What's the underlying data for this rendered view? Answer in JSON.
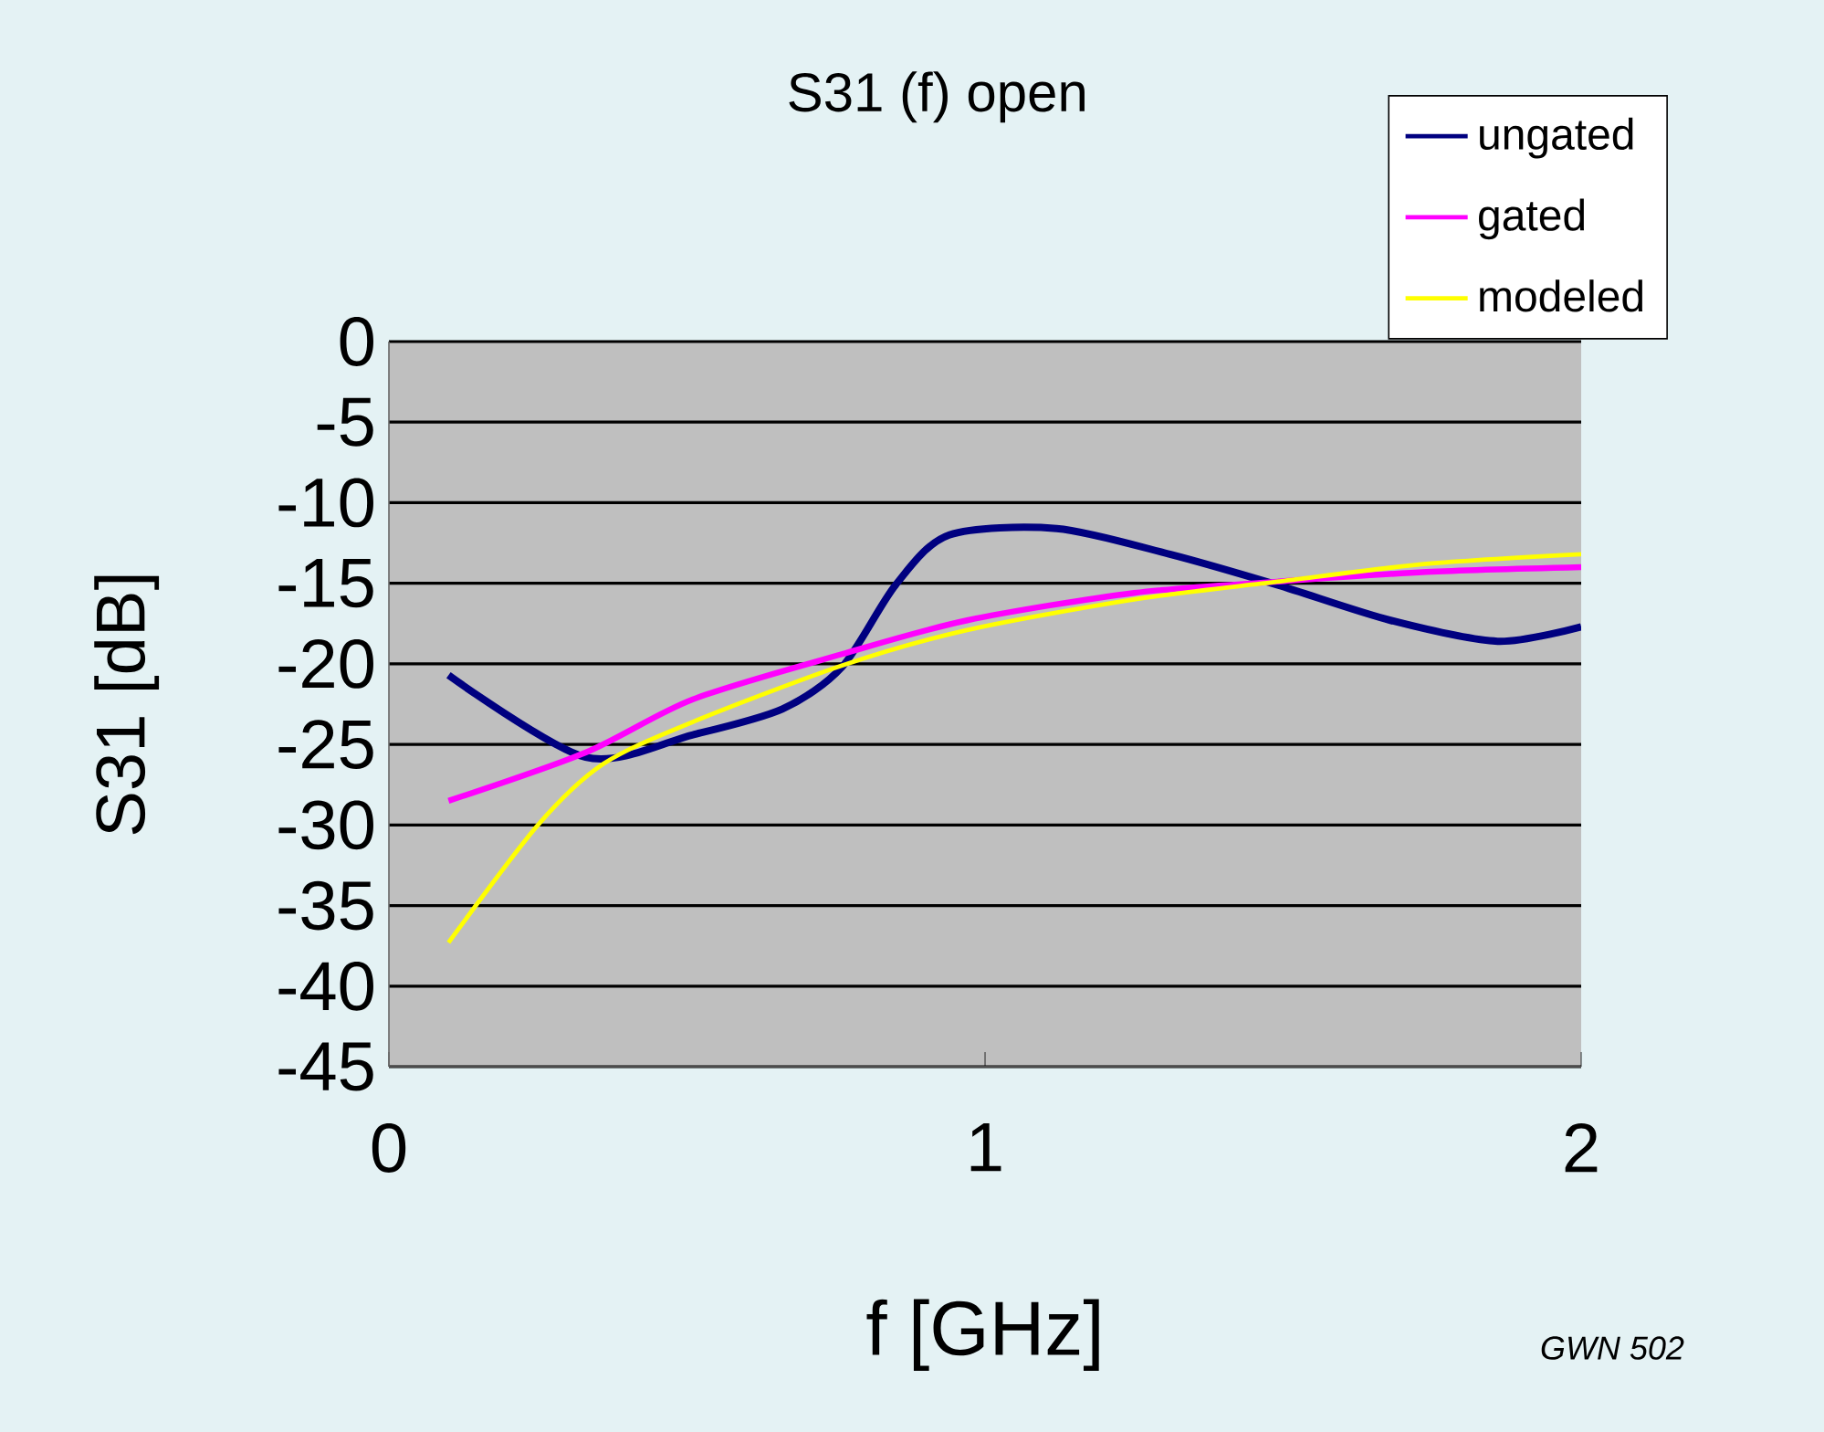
{
  "chart_data": {
    "type": "line",
    "title": "S31 (f) open",
    "xlabel": "f [GHz]",
    "ylabel": "S31 [dB]",
    "annotations": [
      "GWN 502"
    ],
    "xlim": [
      0,
      2
    ],
    "xticks": [
      0,
      1,
      2
    ],
    "ylim": [
      -45,
      0
    ],
    "yticks": [
      -45,
      -40,
      -35,
      -30,
      -25,
      -20,
      -15,
      -10,
      -5,
      0
    ],
    "grid": "y",
    "legend": "top right",
    "marker": "none",
    "line_style": "solid",
    "series": [
      {
        "name": "ungated",
        "color": "#000080",
        "x": [
          0.1,
          0.33,
          0.51,
          0.66,
          0.76,
          0.85,
          0.94,
          1.12,
          1.31,
          1.49,
          1.68,
          1.86,
          2.0
        ],
        "values": [
          -20.7,
          -25.8,
          -24.4,
          -22.8,
          -20.2,
          -15.1,
          -12.0,
          -11.6,
          -13.2,
          -15.1,
          -17.3,
          -18.6,
          -17.7
        ]
      },
      {
        "name": "gated",
        "color": "#ff00ff",
        "x": [
          0.1,
          0.33,
          0.51,
          0.76,
          0.97,
          1.25,
          1.49,
          1.74,
          2.0
        ],
        "values": [
          -28.5,
          -25.5,
          -22.2,
          -19.4,
          -17.3,
          -15.6,
          -14.9,
          -14.3,
          -14.0
        ]
      },
      {
        "name": "modeled",
        "color": "#ffff00",
        "x": [
          0.1,
          0.25,
          0.36,
          0.51,
          0.76,
          0.97,
          1.25,
          1.49,
          1.74,
          2.0
        ],
        "values": [
          -37.3,
          -30.0,
          -26.2,
          -23.6,
          -20.1,
          -17.9,
          -16.0,
          -14.9,
          -13.8,
          -13.2
        ]
      }
    ]
  }
}
